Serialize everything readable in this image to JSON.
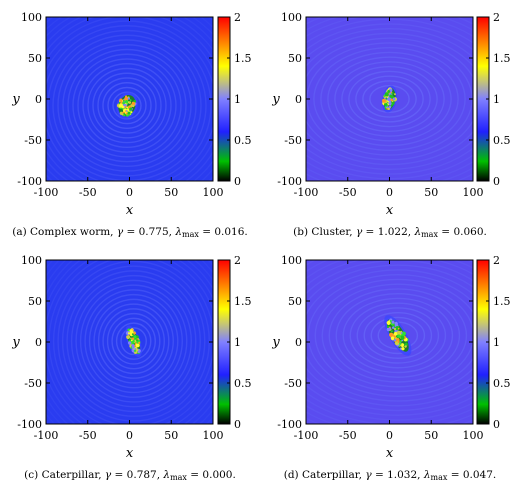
{
  "chart_data": [
    {
      "type": "heatmap",
      "caption": {
        "label": "(a) Complex worm, ",
        "gamma": "0.775",
        "lambda": "0.016."
      },
      "xlabel": "x",
      "ylabel": "y",
      "xlim": [
        -100,
        100
      ],
      "ylim": [
        -100,
        100
      ],
      "xticks": [
        "-100",
        "-50",
        "0",
        "50",
        "100"
      ],
      "yticks": [
        "100",
        "50",
        "0",
        "-50",
        "-100"
      ],
      "colorbar": {
        "range": [
          0,
          2
        ],
        "ticks": [
          "2",
          "1.5",
          "1",
          "0.5",
          "0"
        ]
      },
      "pattern": {
        "center": [
          -3,
          -8
        ],
        "spread": [
          10,
          13
        ],
        "rotation_deg": 70,
        "rings": 1.0
      }
    },
    {
      "type": "heatmap",
      "caption": {
        "label": "(b) Cluster, ",
        "gamma": "1.022",
        "lambda": "0.060."
      },
      "xlabel": "x",
      "ylabel": "y",
      "xlim": [
        -100,
        100
      ],
      "ylim": [
        -100,
        100
      ],
      "xticks": [
        "-100",
        "-50",
        "0",
        "50",
        "100"
      ],
      "yticks": [
        "100",
        "50",
        "0",
        "-50",
        "-100"
      ],
      "colorbar": {
        "range": [
          0,
          2
        ],
        "ticks": [
          "2",
          "1.5",
          "1",
          "0.5",
          "0"
        ]
      },
      "pattern": {
        "center": [
          0,
          0
        ],
        "spread": [
          7,
          13
        ],
        "rotation_deg": 80,
        "rings": 1.4
      }
    },
    {
      "type": "heatmap",
      "caption": {
        "label": "(c) Caterpillar, ",
        "gamma": "0.787",
        "lambda": "0.000."
      },
      "xlabel": "x",
      "ylabel": "y",
      "xlim": [
        -100,
        100
      ],
      "ylim": [
        -100,
        100
      ],
      "xticks": [
        "-100",
        "-50",
        "0",
        "50",
        "100"
      ],
      "yticks": [
        "100",
        "50",
        "0",
        "-50",
        "-100"
      ],
      "colorbar": {
        "range": [
          0,
          2
        ],
        "ticks": [
          "2",
          "1.5",
          "1",
          "0.5",
          "0"
        ]
      },
      "pattern": {
        "center": [
          5,
          1
        ],
        "spread": [
          16,
          6
        ],
        "rotation_deg": 20,
        "rings": 0.9
      }
    },
    {
      "type": "heatmap",
      "caption": {
        "label": "(d) Caterpillar, ",
        "gamma": "1.032",
        "lambda": "0.047."
      },
      "xlabel": "x",
      "ylabel": "y",
      "xlim": [
        -100,
        100
      ],
      "ylim": [
        -100,
        100
      ],
      "xticks": [
        "-100",
        "-50",
        "0",
        "50",
        "100"
      ],
      "yticks": [
        "100",
        "50",
        "0",
        "-50",
        "-100"
      ],
      "colorbar": {
        "range": [
          0,
          2
        ],
        "ticks": [
          "2",
          "1.5",
          "1",
          "0.5",
          "0"
        ]
      },
      "pattern": {
        "center": [
          10,
          8
        ],
        "spread": [
          22,
          8
        ],
        "rotation_deg": 30,
        "rings": 1.4
      }
    }
  ],
  "colors": {
    "background_a": "#2a3cf0",
    "background_b": "#5a4cf0",
    "colormap": [
      "#000000",
      "#00c000",
      "#2020ff",
      "#8080ff",
      "#ffff00",
      "#ff7f00",
      "#ff0000"
    ]
  }
}
